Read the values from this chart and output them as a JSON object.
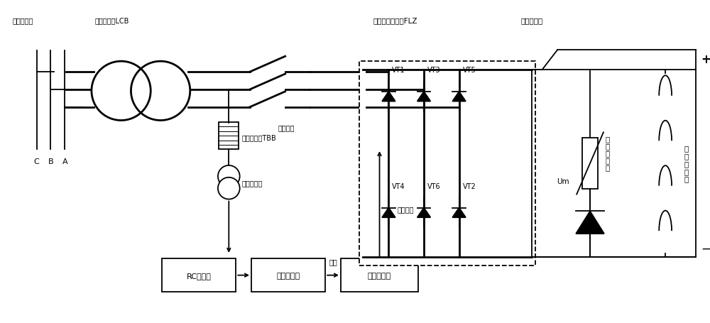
{
  "bg_color": "#ffffff",
  "line_color": "#000000",
  "title_top": "三相全控整流桥FLZ",
  "title_top2": "磁场断路器",
  "label_generator_terminal": "发电机机端",
  "label_excitation_transformer": "励磁变压器LCB",
  "label_ac_switch": "交流刀闸",
  "label_sync_transformer": "同步变压器TBB",
  "label_isolation": "隔离互感器",
  "label_rc_filter": "RC滤波器",
  "label_hysteresis": "迟滞比较器",
  "label_square_wave": "方波",
  "label_excitation_regulator": "励磁调节器",
  "label_six_pulse": "六路脉冲",
  "label_nonlinear": "非\n线\n性\n电\n阻",
  "label_um": "Um",
  "label_generator_rotor": "发\n电\n机\n转\n子",
  "label_plus": "+",
  "label_minus": "−",
  "label_C": "C",
  "label_B": "B",
  "label_A": "A",
  "vt_labels_top": [
    "VT1",
    "VT3",
    "VT5"
  ],
  "vt_labels_bot": [
    "VT4",
    "VT6",
    "VT2"
  ]
}
